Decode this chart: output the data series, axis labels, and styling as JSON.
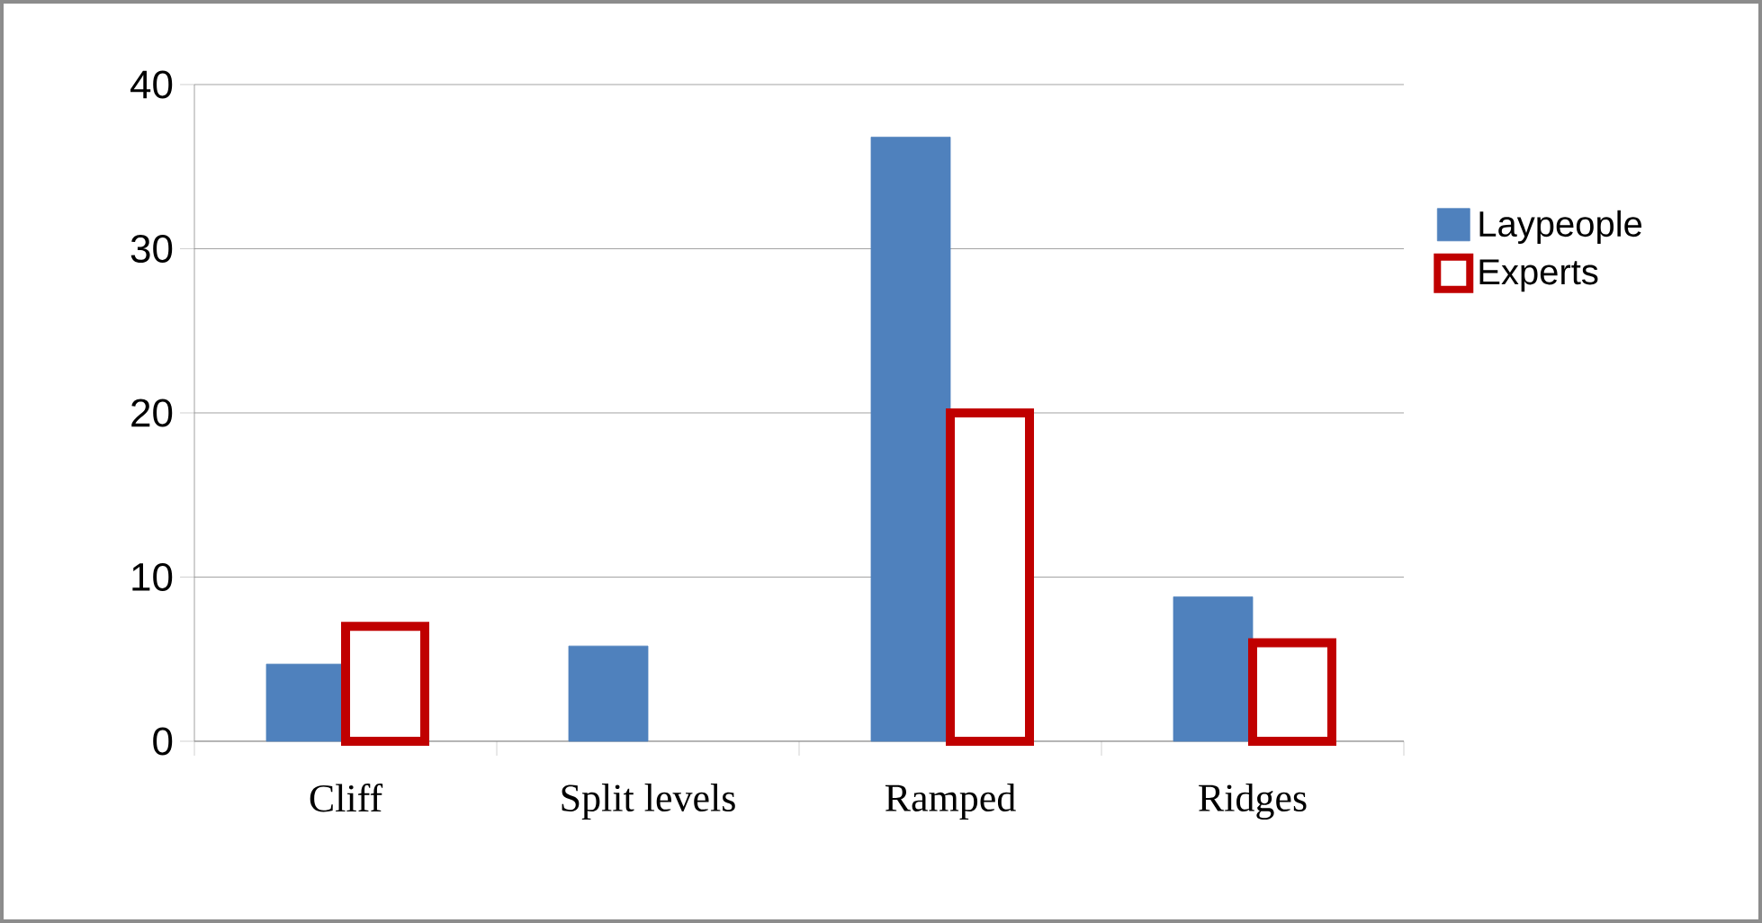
{
  "chart_data": {
    "type": "bar",
    "categories": [
      "Cliff",
      "Split levels",
      "Ramped",
      "Ridges"
    ],
    "series": [
      {
        "name": "Laypeople",
        "color": "#4f81bd",
        "values": [
          4.7,
          5.8,
          36.8,
          8.8
        ]
      },
      {
        "name": "Experts",
        "color": "#c00000",
        "values": [
          7,
          null,
          20,
          6
        ]
      }
    ],
    "ylim": [
      0,
      40
    ],
    "yticks": [
      0,
      10,
      20,
      30,
      40
    ],
    "grid": "y",
    "legend": "right"
  }
}
